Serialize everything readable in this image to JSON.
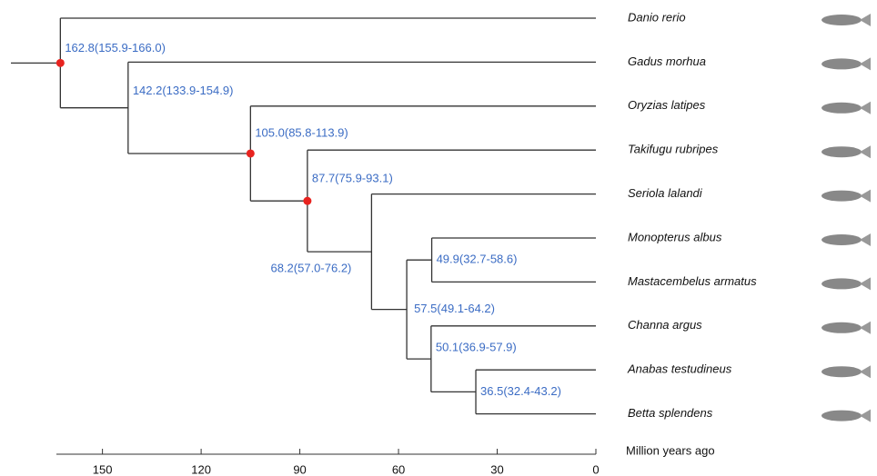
{
  "chart_data": {
    "type": "phylogeny",
    "xlabel": "Million years ago",
    "xlim": [
      164,
      0
    ],
    "xticks": [
      150,
      120,
      90,
      60,
      30,
      0
    ],
    "line_color": "#333333",
    "label_color": "#3b6cc4",
    "calibration_color": "#e8231f",
    "tree": {
      "age": 162.8,
      "label": "162.8(155.9-166.0)",
      "calibrated": true,
      "children": [
        {
          "name": "Danio rerio"
        },
        {
          "age": 142.2,
          "label": "142.2(133.9-154.9)",
          "calibrated": false,
          "children": [
            {
              "name": "Gadus morhua"
            },
            {
              "age": 105.0,
              "label": "105.0(85.8-113.9)",
              "calibrated": true,
              "children": [
                {
                  "name": "Oryzias latipes"
                },
                {
                  "age": 87.7,
                  "label": "87.7(75.9-93.1)",
                  "calibrated": true,
                  "children": [
                    {
                      "name": "Takifugu rubripes"
                    },
                    {
                      "age": 68.2,
                      "label": "68.2(57.0-76.2)",
                      "calibrated": false,
                      "children": [
                        {
                          "name": "Seriola lalandi"
                        },
                        {
                          "age": 57.5,
                          "label": "57.5(49.1-64.2)",
                          "calibrated": false,
                          "children": [
                            {
                              "age": 49.9,
                              "label": "49.9(32.7-58.6)",
                              "calibrated": false,
                              "children": [
                                {
                                  "name": "Monopterus albus"
                                },
                                {
                                  "name": "Mastacembelus armatus"
                                }
                              ]
                            },
                            {
                              "age": 50.1,
                              "label": "50.1(36.9-57.9)",
                              "calibrated": false,
                              "children": [
                                {
                                  "name": "Channa argus"
                                },
                                {
                                  "age": 36.5,
                                  "label": "36.5(32.4-43.2)",
                                  "calibrated": false,
                                  "children": [
                                    {
                                      "name": "Anabas testudineus"
                                    },
                                    {
                                      "name": "Betta splendens"
                                    }
                                  ]
                                }
                              ]
                            }
                          ]
                        }
                      ]
                    }
                  ]
                }
              ]
            }
          ]
        }
      ]
    }
  }
}
